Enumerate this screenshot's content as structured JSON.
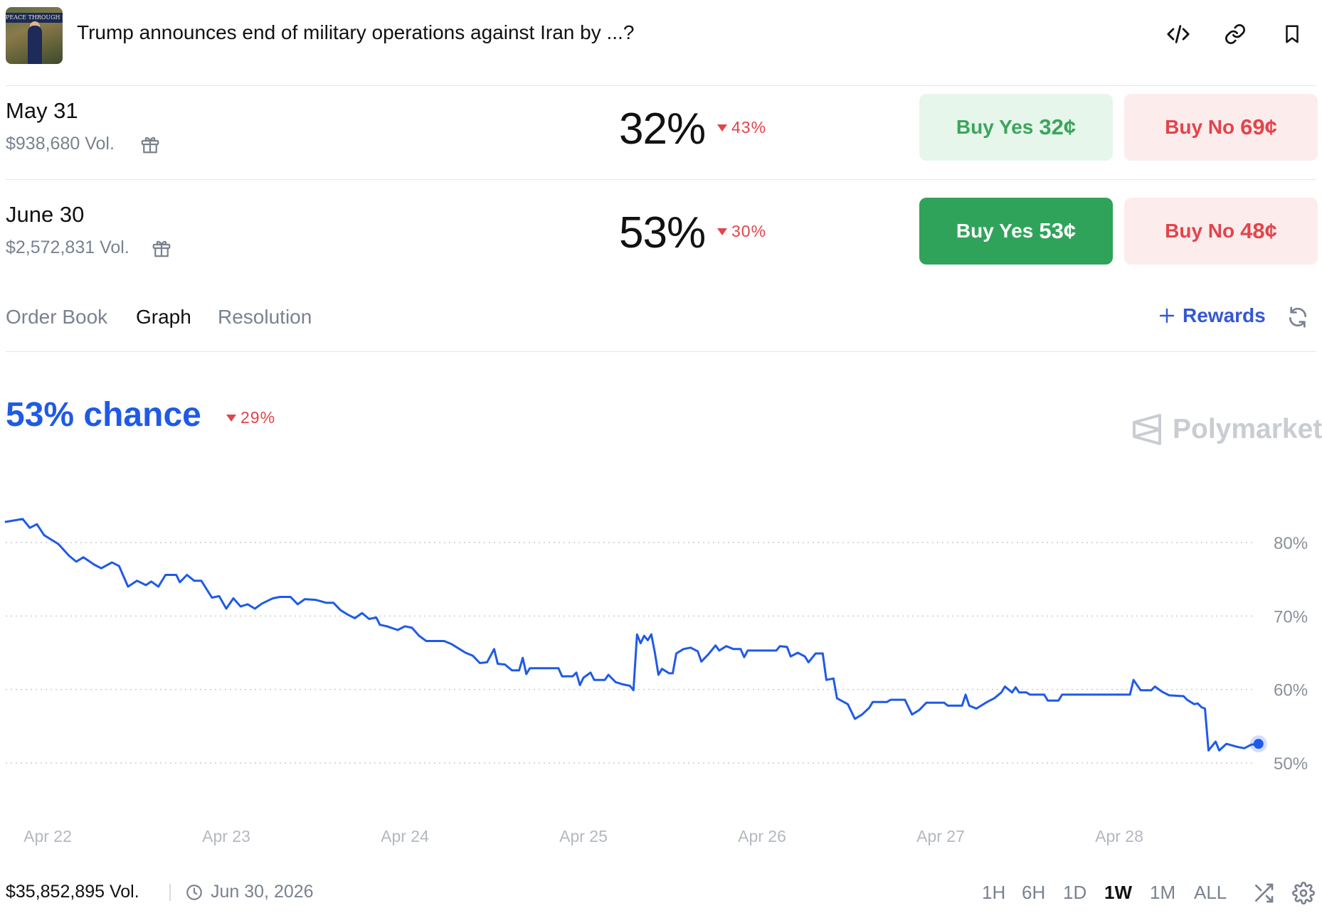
{
  "header": {
    "title": "Trump announces end of military operations against Iran by ...?",
    "thumbnail_text": "PEACE THROUGH STRENGTH",
    "icons": [
      "code-icon",
      "link-icon",
      "bookmark-icon"
    ]
  },
  "markets": [
    {
      "date": "May 31",
      "volume": "$938,680 Vol.",
      "probability": "32%",
      "change": "43%",
      "yes_label": "Buy Yes",
      "yes_price": "32¢",
      "no_label": "Buy No",
      "no_price": "69¢",
      "selected": false
    },
    {
      "date": "June 30",
      "volume": "$2,572,831 Vol.",
      "probability": "53%",
      "change": "30%",
      "yes_label": "Buy Yes",
      "yes_price": "53¢",
      "no_label": "Buy No",
      "no_price": "48¢",
      "selected": true
    }
  ],
  "tabs": [
    {
      "label": "Order Book",
      "active": false
    },
    {
      "label": "Graph",
      "active": true
    },
    {
      "label": "Resolution",
      "active": false
    }
  ],
  "rewards_label": "Rewards",
  "chart_header": {
    "chance": "53% chance",
    "change": "29%",
    "brand": "Polymarket"
  },
  "colors": {
    "line": "#1f5ae6",
    "yes": "#30a35a",
    "no": "#e2444b",
    "accent": "#3457d5"
  },
  "chart_data": {
    "type": "line",
    "title": "",
    "xlabel": "",
    "ylabel": "",
    "ylim": [
      50,
      80
    ],
    "y_ticks": [
      80,
      70,
      60,
      50
    ],
    "y_tick_labels": [
      "80%",
      "70%",
      "60%",
      "50%"
    ],
    "x_ticks": [
      "Apr 22",
      "Apr 23",
      "Apr 24",
      "Apr 25",
      "Apr 26",
      "Apr 27",
      "Apr 28"
    ],
    "x_range": [
      -0.24,
      6.78
    ],
    "grid": true,
    "legend": "none",
    "series": [
      {
        "values": [
          [
            -0.24,
            82.8
          ],
          [
            -0.14,
            83.2
          ],
          [
            -0.1,
            82.0
          ],
          [
            -0.06,
            82.5
          ],
          [
            -0.02,
            81.0
          ],
          [
            0.02,
            80.4
          ],
          [
            0.06,
            79.8
          ],
          [
            0.12,
            78.2
          ],
          [
            0.16,
            77.4
          ],
          [
            0.2,
            78.0
          ],
          [
            0.26,
            77.0
          ],
          [
            0.3,
            76.5
          ],
          [
            0.36,
            77.3
          ],
          [
            0.4,
            76.8
          ],
          [
            0.45,
            74.0
          ],
          [
            0.5,
            74.8
          ],
          [
            0.55,
            74.2
          ],
          [
            0.58,
            74.7
          ],
          [
            0.62,
            74.0
          ],
          [
            0.66,
            75.6
          ],
          [
            0.72,
            75.6
          ],
          [
            0.74,
            74.6
          ],
          [
            0.78,
            75.6
          ],
          [
            0.82,
            74.8
          ],
          [
            0.86,
            74.8
          ],
          [
            0.92,
            72.5
          ],
          [
            0.96,
            72.7
          ],
          [
            1.0,
            71.0
          ],
          [
            1.04,
            72.4
          ],
          [
            1.08,
            71.3
          ],
          [
            1.12,
            71.6
          ],
          [
            1.16,
            71.0
          ],
          [
            1.2,
            71.7
          ],
          [
            1.26,
            72.4
          ],
          [
            1.3,
            72.6
          ],
          [
            1.36,
            72.6
          ],
          [
            1.4,
            71.6
          ],
          [
            1.44,
            72.3
          ],
          [
            1.5,
            72.2
          ],
          [
            1.56,
            71.8
          ],
          [
            1.6,
            71.8
          ],
          [
            1.64,
            70.8
          ],
          [
            1.68,
            70.2
          ],
          [
            1.72,
            69.7
          ],
          [
            1.76,
            70.4
          ],
          [
            1.8,
            69.6
          ],
          [
            1.84,
            69.8
          ],
          [
            1.86,
            68.8
          ],
          [
            1.9,
            68.6
          ],
          [
            1.96,
            68.1
          ],
          [
            2.0,
            68.6
          ],
          [
            2.04,
            68.4
          ],
          [
            2.08,
            67.3
          ],
          [
            2.12,
            66.6
          ],
          [
            2.22,
            66.6
          ],
          [
            2.26,
            66.2
          ],
          [
            2.3,
            65.6
          ],
          [
            2.34,
            65.0
          ],
          [
            2.38,
            64.6
          ],
          [
            2.42,
            63.6
          ],
          [
            2.46,
            63.7
          ],
          [
            2.5,
            65.5
          ],
          [
            2.52,
            63.5
          ],
          [
            2.56,
            63.4
          ],
          [
            2.6,
            62.6
          ],
          [
            2.64,
            62.6
          ],
          [
            2.66,
            64.3
          ],
          [
            2.68,
            62.1
          ],
          [
            2.7,
            62.9
          ],
          [
            2.86,
            62.9
          ],
          [
            2.88,
            61.8
          ],
          [
            2.94,
            61.8
          ],
          [
            2.96,
            62.3
          ],
          [
            2.98,
            60.6
          ],
          [
            3.0,
            61.6
          ],
          [
            3.04,
            62.3
          ],
          [
            3.06,
            61.3
          ],
          [
            3.12,
            61.3
          ],
          [
            3.14,
            62.0
          ],
          [
            3.18,
            61.0
          ],
          [
            3.22,
            60.7
          ],
          [
            3.26,
            60.5
          ],
          [
            3.28,
            59.9
          ],
          [
            3.3,
            67.5
          ],
          [
            3.32,
            66.3
          ],
          [
            3.34,
            67.3
          ],
          [
            3.36,
            66.7
          ],
          [
            3.38,
            67.5
          ],
          [
            3.4,
            65.0
          ],
          [
            3.42,
            62.0
          ],
          [
            3.44,
            62.8
          ],
          [
            3.48,
            62.2
          ],
          [
            3.5,
            62.2
          ],
          [
            3.52,
            64.9
          ],
          [
            3.56,
            65.5
          ],
          [
            3.6,
            65.7
          ],
          [
            3.64,
            65.2
          ],
          [
            3.66,
            63.8
          ],
          [
            3.7,
            64.8
          ],
          [
            3.74,
            66.0
          ],
          [
            3.76,
            65.3
          ],
          [
            3.8,
            65.9
          ],
          [
            3.84,
            65.5
          ],
          [
            3.88,
            65.5
          ],
          [
            3.9,
            64.4
          ],
          [
            3.92,
            65.3
          ],
          [
            4.08,
            65.3
          ],
          [
            4.1,
            65.9
          ],
          [
            4.14,
            65.8
          ],
          [
            4.16,
            64.5
          ],
          [
            4.2,
            65.0
          ],
          [
            4.24,
            64.5
          ],
          [
            4.26,
            63.7
          ],
          [
            4.3,
            64.9
          ],
          [
            4.34,
            64.9
          ],
          [
            4.36,
            61.3
          ],
          [
            4.4,
            61.5
          ],
          [
            4.42,
            58.8
          ],
          [
            4.48,
            58.0
          ],
          [
            4.52,
            56.0
          ],
          [
            4.56,
            56.6
          ],
          [
            4.6,
            57.5
          ],
          [
            4.62,
            58.3
          ],
          [
            4.7,
            58.3
          ],
          [
            4.72,
            58.6
          ],
          [
            4.8,
            58.6
          ],
          [
            4.82,
            57.6
          ],
          [
            4.84,
            56.6
          ],
          [
            4.88,
            57.2
          ],
          [
            4.92,
            58.2
          ],
          [
            5.02,
            58.2
          ],
          [
            5.04,
            57.8
          ],
          [
            5.12,
            57.8
          ],
          [
            5.14,
            59.3
          ],
          [
            5.16,
            57.8
          ],
          [
            5.2,
            57.4
          ],
          [
            5.26,
            58.3
          ],
          [
            5.3,
            58.8
          ],
          [
            5.34,
            59.6
          ],
          [
            5.36,
            60.4
          ],
          [
            5.4,
            59.6
          ],
          [
            5.42,
            60.3
          ],
          [
            5.44,
            59.6
          ],
          [
            5.48,
            59.6
          ],
          [
            5.5,
            59.3
          ],
          [
            5.58,
            59.3
          ],
          [
            5.6,
            58.5
          ],
          [
            5.66,
            58.5
          ],
          [
            5.68,
            59.3
          ],
          [
            6.06,
            59.3
          ],
          [
            6.08,
            61.3
          ],
          [
            6.12,
            59.9
          ],
          [
            6.18,
            59.9
          ],
          [
            6.2,
            60.4
          ],
          [
            6.24,
            59.7
          ],
          [
            6.28,
            59.2
          ],
          [
            6.36,
            59.1
          ],
          [
            6.38,
            58.6
          ],
          [
            6.42,
            58.0
          ],
          [
            6.44,
            58.1
          ],
          [
            6.46,
            57.6
          ],
          [
            6.48,
            57.4
          ],
          [
            6.5,
            51.7
          ],
          [
            6.54,
            52.9
          ],
          [
            6.56,
            51.7
          ],
          [
            6.6,
            52.6
          ],
          [
            6.66,
            52.2
          ],
          [
            6.7,
            52.0
          ],
          [
            6.74,
            52.5
          ],
          [
            6.78,
            52.6
          ]
        ]
      }
    ]
  },
  "footer": {
    "volume": "$35,852,895 Vol.",
    "end_date": "Jun 30, 2026",
    "ranges": [
      {
        "label": "1H",
        "active": false
      },
      {
        "label": "6H",
        "active": false
      },
      {
        "label": "1D",
        "active": false
      },
      {
        "label": "1W",
        "active": true
      },
      {
        "label": "1M",
        "active": false
      },
      {
        "label": "ALL",
        "active": false
      }
    ]
  }
}
